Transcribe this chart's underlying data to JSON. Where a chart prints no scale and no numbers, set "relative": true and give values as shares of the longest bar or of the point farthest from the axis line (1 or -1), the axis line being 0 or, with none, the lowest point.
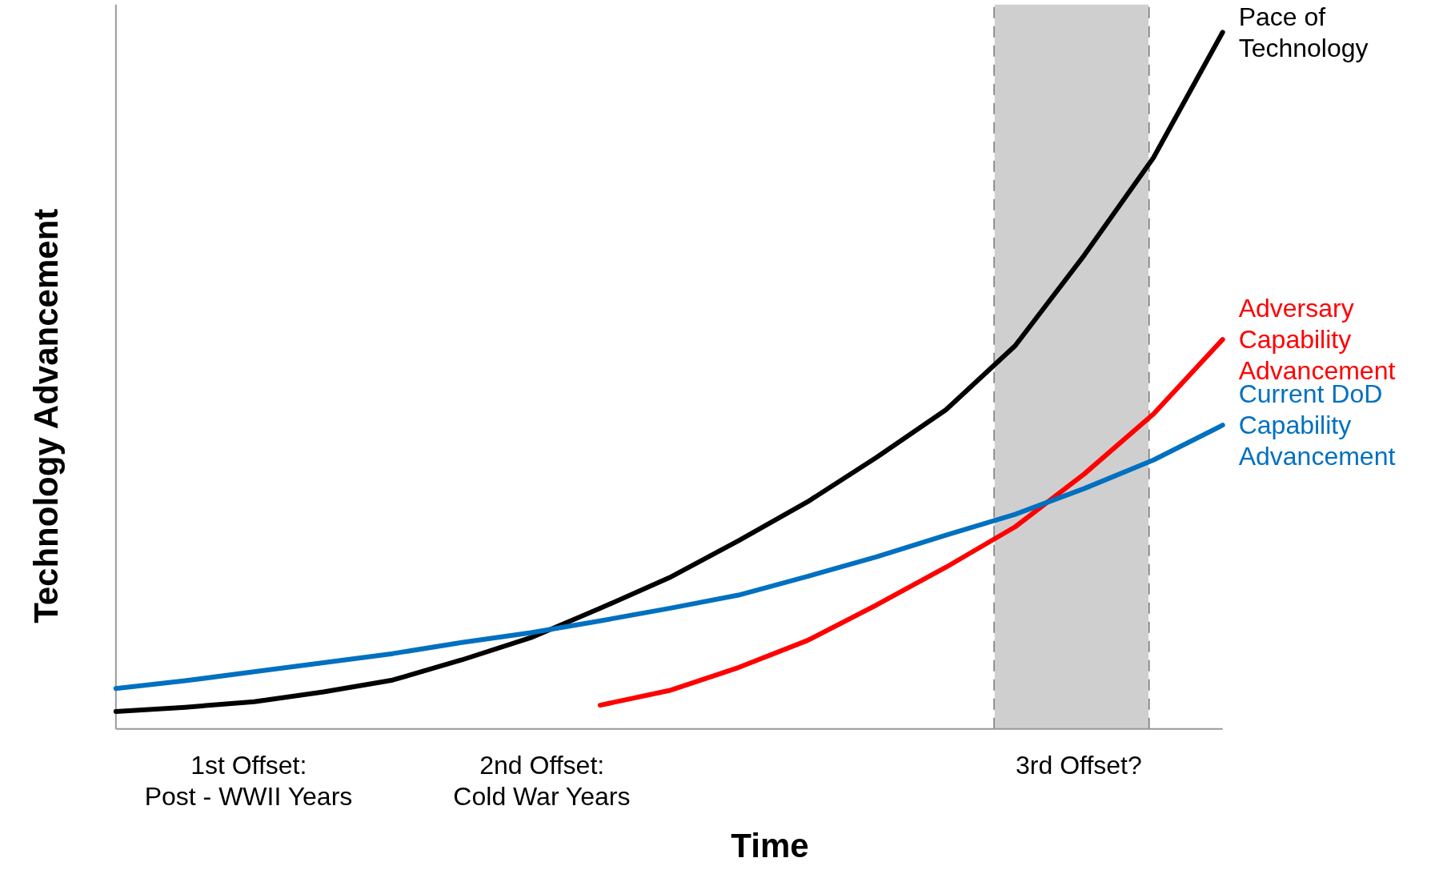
{
  "chart_data": {
    "type": "line",
    "relative": true,
    "xlabel": "Time",
    "ylabel": "Technology Advancement",
    "categories": [
      null,
      null,
      null,
      null,
      null,
      null,
      null,
      null,
      null,
      null,
      null,
      null,
      null,
      null,
      null,
      null,
      null
    ],
    "grid": false,
    "line_style": "solid",
    "series": [
      {
        "name": "Pace of\nTechnology",
        "color": "#000000",
        "values": [
          0.025,
          0.031,
          0.039,
          0.053,
          0.07,
          0.099,
          0.131,
          0.173,
          0.217,
          0.27,
          0.326,
          0.39,
          0.458,
          0.55,
          0.68,
          0.82,
          1
        ]
      },
      {
        "name": "Adversary\nCapability\nAdvancement",
        "color": "#ff0000",
        "values": [
          null,
          null,
          null,
          null,
          null,
          null,
          null,
          0.034,
          0.055,
          0.088,
          0.127,
          0.178,
          0.232,
          0.29,
          0.366,
          0.452,
          0.559
        ]
      },
      {
        "name": "Current DoD\nCapability\nAdvancement",
        "color": "#0070c0",
        "values": [
          0.058,
          0.069,
          0.082,
          0.095,
          0.108,
          0.124,
          0.138,
          0.155,
          0.173,
          0.192,
          0.219,
          0.247,
          0.278,
          0.308,
          0.345,
          0.386,
          0.436
        ]
      }
    ],
    "annotations": [
      "1st Offset:\nPost - WWII Years",
      "2nd Offset:\nCold War Years",
      "3rd Offset?"
    ]
  }
}
